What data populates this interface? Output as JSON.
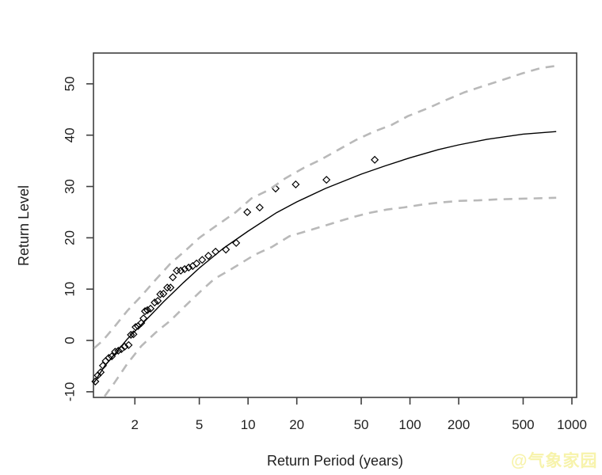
{
  "figure": {
    "background": "#ffffff",
    "frame_color": "#3f3f3f",
    "text_color": "#1f1f1f"
  },
  "watermark": {
    "text": "@气象家园",
    "color": "#f7f3ab"
  },
  "chart_data": {
    "type": "line",
    "title": "",
    "xlabel": "Return Period (years)",
    "ylabel": "Return Level",
    "x_scale": "log",
    "xlim": [
      1.11,
      1070
    ],
    "ylim": [
      -11.1,
      56
    ],
    "grid": false,
    "legend": "none",
    "x_ticks": {
      "values": [
        2,
        5,
        10,
        20,
        50,
        100,
        200,
        500,
        1000
      ],
      "labels": [
        "2",
        "5",
        "10",
        "20",
        "50",
        "100",
        "200",
        "500",
        "1000"
      ]
    },
    "y_ticks": {
      "values": [
        -10,
        0,
        10,
        20,
        30,
        40,
        50
      ],
      "labels": [
        "-10",
        "0",
        "10",
        "20",
        "30",
        "40",
        "50"
      ]
    },
    "series": [
      {
        "name": "empirical-points",
        "kind": "scatter",
        "marker": "open-diamond",
        "color": "#000000",
        "points": [
          [
            1.14,
            -8.0
          ],
          [
            1.18,
            -6.8
          ],
          [
            1.23,
            -6.2
          ],
          [
            1.27,
            -4.9
          ],
          [
            1.32,
            -4.0
          ],
          [
            1.38,
            -3.4
          ],
          [
            1.44,
            -3.1
          ],
          [
            1.51,
            -2.2
          ],
          [
            1.58,
            -2.0
          ],
          [
            1.65,
            -1.7
          ],
          [
            1.73,
            -1.2
          ],
          [
            1.83,
            -0.9
          ],
          [
            1.89,
            1.1
          ],
          [
            1.96,
            1.2
          ],
          [
            2.02,
            2.6
          ],
          [
            2.09,
            2.8
          ],
          [
            2.19,
            3.4
          ],
          [
            2.26,
            4.3
          ],
          [
            2.31,
            5.7
          ],
          [
            2.39,
            5.9
          ],
          [
            2.5,
            6.2
          ],
          [
            2.65,
            7.4
          ],
          [
            2.77,
            7.7
          ],
          [
            2.87,
            9.0
          ],
          [
            3.0,
            9.1
          ],
          [
            3.17,
            10.3
          ],
          [
            3.32,
            10.3
          ],
          [
            3.43,
            12.3
          ],
          [
            3.63,
            13.6
          ],
          [
            3.84,
            13.6
          ],
          [
            4.06,
            13.9
          ],
          [
            4.3,
            14.2
          ],
          [
            4.55,
            14.5
          ],
          [
            4.81,
            15.0
          ],
          [
            5.21,
            15.7
          ],
          [
            5.69,
            16.5
          ],
          [
            6.3,
            17.3
          ],
          [
            7.3,
            17.7
          ],
          [
            8.45,
            19.0
          ],
          [
            9.89,
            25.0
          ],
          [
            11.8,
            25.9
          ],
          [
            14.8,
            29.6
          ],
          [
            19.7,
            30.4
          ],
          [
            30.5,
            31.3
          ],
          [
            60.6,
            35.2
          ]
        ]
      },
      {
        "name": "fitted-return-level-curve",
        "kind": "line",
        "style": "solid",
        "color": "#000000",
        "points": [
          [
            1.12,
            -8.2
          ],
          [
            1.3,
            -5.0
          ],
          [
            1.5,
            -2.7
          ],
          [
            1.8,
            0.3
          ],
          [
            2.0,
            1.8
          ],
          [
            2.5,
            4.9
          ],
          [
            3.0,
            7.5
          ],
          [
            4.0,
            11.3
          ],
          [
            5.0,
            14.1
          ],
          [
            7.0,
            17.9
          ],
          [
            10,
            21.3
          ],
          [
            15,
            24.9
          ],
          [
            20,
            27.0
          ],
          [
            30,
            29.6
          ],
          [
            50,
            32.4
          ],
          [
            70,
            34.0
          ],
          [
            100,
            35.6
          ],
          [
            150,
            37.2
          ],
          [
            200,
            38.1
          ],
          [
            300,
            39.2
          ],
          [
            500,
            40.2
          ],
          [
            800,
            40.7
          ]
        ]
      },
      {
        "name": "upper-confidence-band",
        "kind": "line",
        "style": "dashed",
        "color": "#b9b9b9",
        "points": [
          [
            1.12,
            -1.5
          ],
          [
            1.27,
            0.0
          ],
          [
            1.5,
            2.7
          ],
          [
            1.8,
            5.8
          ],
          [
            2.2,
            8.7
          ],
          [
            2.7,
            11.9
          ],
          [
            3.3,
            14.9
          ],
          [
            4.1,
            17.5
          ],
          [
            5.0,
            20.0
          ],
          [
            6.6,
            22.7
          ],
          [
            8.4,
            25.0
          ],
          [
            10.5,
            27.7
          ],
          [
            13.4,
            29.3
          ],
          [
            17,
            31.6
          ],
          [
            22,
            33.6
          ],
          [
            28,
            35.2
          ],
          [
            46,
            39.0
          ],
          [
            60,
            40.7
          ],
          [
            77,
            42.0
          ],
          [
            97,
            43.7
          ],
          [
            128,
            45.2
          ],
          [
            166,
            46.8
          ],
          [
            215,
            48.3
          ],
          [
            273,
            49.4
          ],
          [
            360,
            50.6
          ],
          [
            490,
            52.0
          ],
          [
            645,
            53.1
          ],
          [
            800,
            53.5
          ]
        ]
      },
      {
        "name": "lower-confidence-band",
        "kind": "line",
        "style": "dashed",
        "color": "#b9b9b9",
        "points": [
          [
            1.3,
            -10.9
          ],
          [
            1.5,
            -8.2
          ],
          [
            1.79,
            -4.6
          ],
          [
            2.19,
            -1.1
          ],
          [
            2.68,
            1.5
          ],
          [
            3.32,
            3.9
          ],
          [
            4.15,
            6.9
          ],
          [
            5.1,
            9.6
          ],
          [
            6.2,
            12.0
          ],
          [
            7.6,
            13.6
          ],
          [
            11,
            16.7
          ],
          [
            14,
            18.2
          ],
          [
            18,
            20.3
          ],
          [
            23,
            21.3
          ],
          [
            43,
            23.9
          ],
          [
            55,
            24.8
          ],
          [
            72,
            25.5
          ],
          [
            91,
            25.9
          ],
          [
            121,
            26.5
          ],
          [
            155,
            26.9
          ],
          [
            204,
            27.2
          ],
          [
            264,
            27.3
          ],
          [
            350,
            27.5
          ],
          [
            470,
            27.6
          ],
          [
            610,
            27.7
          ],
          [
            800,
            27.8
          ]
        ]
      }
    ]
  }
}
